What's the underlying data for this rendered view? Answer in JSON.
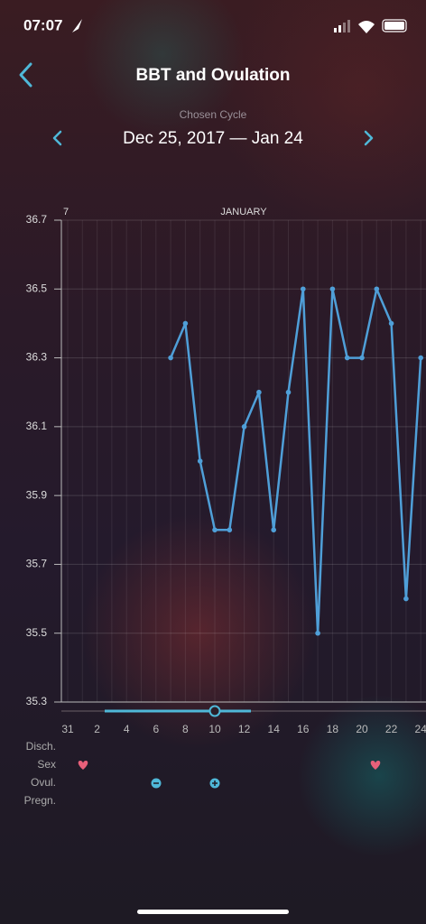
{
  "status_bar": {
    "time": "07:07"
  },
  "header": {
    "title": "BBT and Ovulation"
  },
  "cycle": {
    "label": "Chosen Cycle",
    "range": "Dec 25, 2017 — Jan 24"
  },
  "chart_data": {
    "type": "line",
    "corner_label": "7",
    "month_label": "JANUARY",
    "categories": [
      "31",
      null,
      "2",
      null,
      "4",
      null,
      "6",
      null,
      "8",
      null,
      "10",
      null,
      "12",
      null,
      "14",
      null,
      "16",
      null,
      "18",
      null,
      "20",
      null,
      "22",
      null,
      "24"
    ],
    "series": [
      {
        "name": "BBT",
        "color": "#4f9fd8",
        "values": [
          null,
          null,
          null,
          null,
          null,
          null,
          null,
          36.3,
          36.4,
          36.0,
          35.8,
          35.8,
          36.1,
          36.2,
          35.8,
          36.2,
          36.5,
          35.5,
          36.5,
          36.3,
          36.3,
          36.5,
          36.4,
          35.6,
          36.3
        ]
      }
    ],
    "ylim": [
      35.3,
      36.7
    ],
    "yticks": [
      35.3,
      35.5,
      35.7,
      35.9,
      36.1,
      36.3,
      36.5,
      36.7
    ],
    "grid": true
  },
  "rows": {
    "labels": [
      "Disch.",
      "Sex",
      "Ovul.",
      "Pregn."
    ]
  }
}
